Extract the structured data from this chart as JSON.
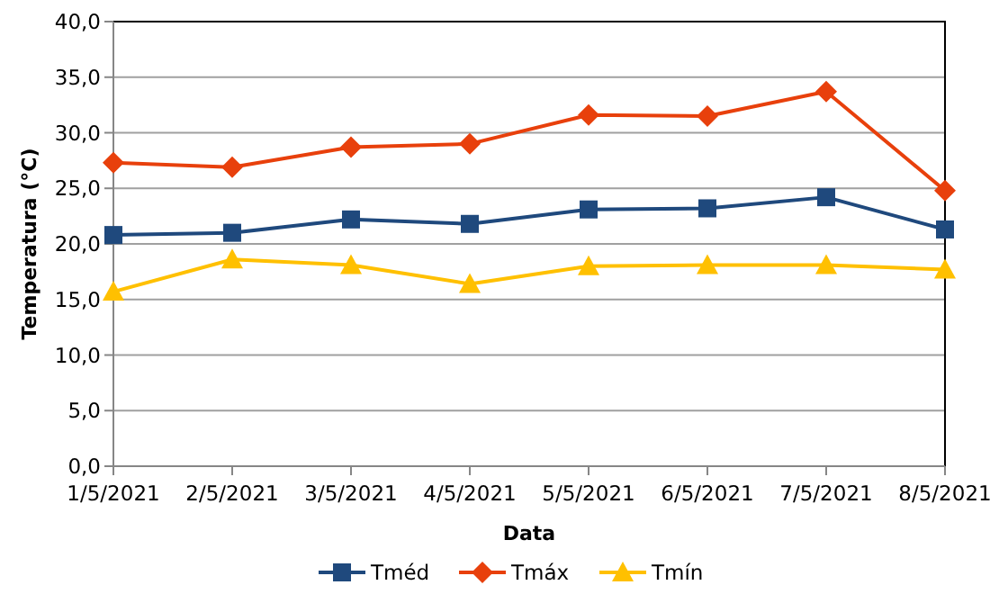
{
  "chart_data": {
    "type": "line",
    "xlabel": "Data",
    "ylabel": "Temperatura (°C)",
    "categories": [
      "1/5/2021",
      "2/5/2021",
      "3/5/2021",
      "4/5/2021",
      "5/5/2021",
      "6/5/2021",
      "7/5/2021",
      "8/5/2021"
    ],
    "series": [
      {
        "name": "Tméd",
        "color": "#1f497d",
        "marker": "square",
        "values": [
          20.8,
          21.0,
          22.2,
          21.8,
          23.1,
          23.2,
          24.2,
          21.3
        ]
      },
      {
        "name": "Tmáx",
        "color": "#e8400c",
        "marker": "diamond",
        "values": [
          27.3,
          26.9,
          28.7,
          29.0,
          31.6,
          31.5,
          33.7,
          24.8
        ]
      },
      {
        "name": "Tmín",
        "color": "#ffc000",
        "marker": "triangle",
        "values": [
          15.7,
          18.6,
          18.1,
          16.4,
          18.0,
          18.1,
          18.1,
          17.7
        ]
      }
    ],
    "ylim": [
      0,
      40
    ],
    "yticks": [
      {
        "value": 0,
        "label": "0,0"
      },
      {
        "value": 5,
        "label": "5,0"
      },
      {
        "value": 10,
        "label": "10,0"
      },
      {
        "value": 15,
        "label": "15,0"
      },
      {
        "value": 20,
        "label": "20,0"
      },
      {
        "value": 25,
        "label": "25,0"
      },
      {
        "value": 30,
        "label": "30,0"
      },
      {
        "value": 35,
        "label": "35,0"
      },
      {
        "value": 40,
        "label": "40,0"
      }
    ],
    "grid": "y",
    "legend": "bottom"
  }
}
